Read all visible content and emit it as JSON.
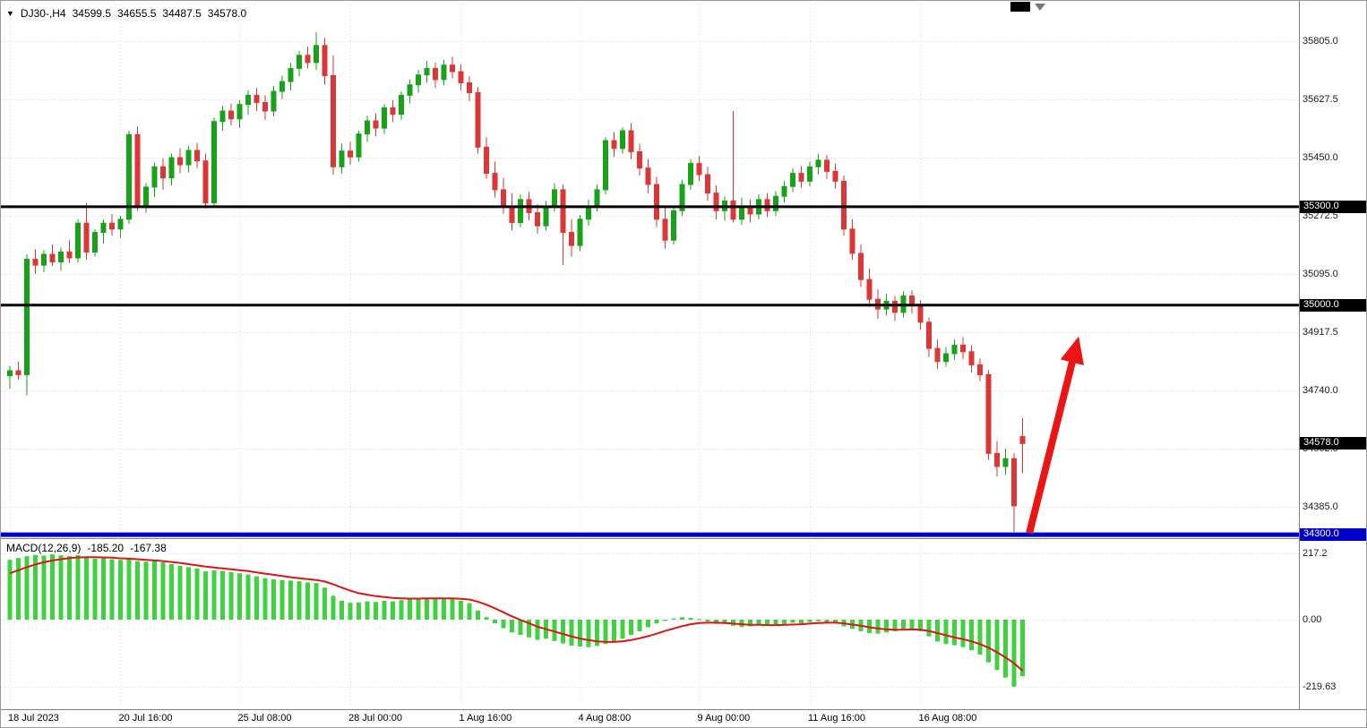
{
  "header": {
    "dropdown_icon": "▼",
    "symbol_period": "DJ30-,H4",
    "open": "34599.5",
    "high": "34655.5",
    "low": "34487.5",
    "close": "34578.0"
  },
  "indicator": {
    "label": "MACD(12,26,9)",
    "value_main": "-185.20",
    "value_signal": "-167.38"
  },
  "chart_data": {
    "type": "candlestick+macd",
    "symbol": "DJ30-",
    "timeframe": "H4",
    "price_ticks": [
      "35805.0",
      "35627.5",
      "35450.0",
      "35272.5",
      "35095.0",
      "34917.5",
      "34740.0",
      "34562.5",
      "34385.0"
    ],
    "macd_ticks": [
      "217.2",
      "0.00",
      "-219.63"
    ],
    "time_ticks": [
      {
        "label": "18 Jul 2023",
        "index": 0
      },
      {
        "label": "20 Jul 16:00",
        "index": 13
      },
      {
        "label": "25 Jul 08:00",
        "index": 27
      },
      {
        "label": "28 Jul 00:00",
        "index": 40
      },
      {
        "label": "1 Aug 16:00",
        "index": 53
      },
      {
        "label": "4 Aug 08:00",
        "index": 67
      },
      {
        "label": "9 Aug 00:00",
        "index": 81
      },
      {
        "label": "11 Aug 16:00",
        "index": 94
      },
      {
        "label": "16 Aug 08:00",
        "index": 107
      }
    ],
    "levels": [
      {
        "value": 35300.0,
        "label": "35300.0",
        "color": "#000000",
        "width": 3,
        "name": "resistance-line-35300"
      },
      {
        "value": 35000.0,
        "label": "35000.0",
        "color": "#000000",
        "width": 3,
        "name": "support-line-35000"
      },
      {
        "value": 34300.0,
        "label": "34300.0",
        "color": "#0000cd",
        "width": 5,
        "name": "support-line-34300"
      }
    ],
    "current_price_tag": {
      "value": 34578.0,
      "label": "34578.0",
      "color": "#000000"
    },
    "colors": {
      "up": "#17a317",
      "down": "#dd3636",
      "macd_bar": "#3fd23f",
      "signal": "#e01414",
      "grid": "#d9d9d9",
      "arrow": "#ec1515"
    },
    "ylim_price": [
      34250,
      35930
    ],
    "ylim_macd": [
      -260,
      250
    ],
    "ohlc": [
      [
        34785,
        34815,
        34745,
        34800
      ],
      [
        34800,
        34828,
        34772,
        34788
      ],
      [
        34788,
        35155,
        34725,
        35140
      ],
      [
        35140,
        35170,
        35095,
        35122
      ],
      [
        35122,
        35168,
        35100,
        35155
      ],
      [
        35155,
        35185,
        35120,
        35132
      ],
      [
        35132,
        35176,
        35105,
        35162
      ],
      [
        35162,
        35198,
        35128,
        35144
      ],
      [
        35144,
        35262,
        35130,
        35250
      ],
      [
        35250,
        35312,
        35138,
        35162
      ],
      [
        35162,
        35232,
        35148,
        35222
      ],
      [
        35222,
        35262,
        35188,
        35250
      ],
      [
        35250,
        35278,
        35212,
        35232
      ],
      [
        35232,
        35272,
        35205,
        35262
      ],
      [
        35262,
        35532,
        35248,
        35520
      ],
      [
        35520,
        35545,
        35288,
        35302
      ],
      [
        35302,
        35372,
        35282,
        35360
      ],
      [
        35360,
        35435,
        35330,
        35422
      ],
      [
        35422,
        35448,
        35352,
        35388
      ],
      [
        35388,
        35462,
        35365,
        35450
      ],
      [
        35450,
        35478,
        35402,
        35428
      ],
      [
        35428,
        35485,
        35405,
        35472
      ],
      [
        35472,
        35495,
        35418,
        35440
      ],
      [
        35440,
        35462,
        35295,
        35312
      ],
      [
        35312,
        35572,
        35300,
        35560
      ],
      [
        35560,
        35608,
        35532,
        35592
      ],
      [
        35592,
        35615,
        35548,
        35568
      ],
      [
        35568,
        35625,
        35540,
        35612
      ],
      [
        35612,
        35655,
        35580,
        35640
      ],
      [
        35640,
        35662,
        35592,
        35618
      ],
      [
        35618,
        35640,
        35565,
        35592
      ],
      [
        35592,
        35668,
        35575,
        35652
      ],
      [
        35652,
        35700,
        35628,
        35682
      ],
      [
        35682,
        35738,
        35655,
        35722
      ],
      [
        35722,
        35775,
        35698,
        35762
      ],
      [
        35762,
        35788,
        35722,
        35740
      ],
      [
        35740,
        35832,
        35718,
        35792
      ],
      [
        35792,
        35815,
        35672,
        35700
      ],
      [
        35700,
        35762,
        35398,
        35422
      ],
      [
        35422,
        35492,
        35402,
        35470
      ],
      [
        35470,
        35498,
        35428,
        35452
      ],
      [
        35452,
        35532,
        35438,
        35522
      ],
      [
        35522,
        35578,
        35498,
        35562
      ],
      [
        35562,
        35585,
        35515,
        35540
      ],
      [
        35540,
        35612,
        35522,
        35602
      ],
      [
        35602,
        35625,
        35558,
        35582
      ],
      [
        35582,
        35652,
        35565,
        35640
      ],
      [
        35640,
        35688,
        35615,
        35672
      ],
      [
        35672,
        35718,
        35648,
        35702
      ],
      [
        35702,
        35745,
        35678,
        35722
      ],
      [
        35722,
        35740,
        35662,
        35688
      ],
      [
        35688,
        35748,
        35670,
        35732
      ],
      [
        35732,
        35758,
        35692,
        35712
      ],
      [
        35712,
        35735,
        35655,
        35678
      ],
      [
        35678,
        35698,
        35622,
        35648
      ],
      [
        35648,
        35665,
        35462,
        35482
      ],
      [
        35482,
        35512,
        35385,
        35402
      ],
      [
        35402,
        35438,
        35328,
        35352
      ],
      [
        35352,
        35388,
        35278,
        35302
      ],
      [
        35302,
        35342,
        35228,
        35252
      ],
      [
        35252,
        35338,
        35238,
        35322
      ],
      [
        35322,
        35345,
        35258,
        35282
      ],
      [
        35282,
        35308,
        35218,
        35242
      ],
      [
        35242,
        35318,
        35228,
        35302
      ],
      [
        35302,
        35372,
        35285,
        35352
      ],
      [
        35352,
        35368,
        35122,
        35222
      ],
      [
        35222,
        35262,
        35148,
        35182
      ],
      [
        35182,
        35275,
        35165,
        35262
      ],
      [
        35262,
        35322,
        35242,
        35302
      ],
      [
        35302,
        35368,
        35285,
        35352
      ],
      [
        35352,
        35512,
        35338,
        35502
      ],
      [
        35502,
        35528,
        35452,
        35478
      ],
      [
        35478,
        35542,
        35462,
        35532
      ],
      [
        35532,
        35555,
        35445,
        35468
      ],
      [
        35468,
        35492,
        35395,
        35418
      ],
      [
        35418,
        35445,
        35342,
        35368
      ],
      [
        35368,
        35392,
        35238,
        35262
      ],
      [
        35262,
        35298,
        35172,
        35198
      ],
      [
        35198,
        35302,
        35185,
        35288
      ],
      [
        35288,
        35382,
        35272,
        35368
      ],
      [
        35368,
        35445,
        35352,
        35432
      ],
      [
        35432,
        35455,
        35378,
        35398
      ],
      [
        35398,
        35422,
        35318,
        35342
      ],
      [
        35342,
        35365,
        35262,
        35288
      ],
      [
        35288,
        35332,
        35258,
        35318
      ],
      [
        35318,
        35592,
        35252,
        35262
      ],
      [
        35262,
        35328,
        35245,
        35302
      ],
      [
        35302,
        35322,
        35252,
        35278
      ],
      [
        35278,
        35338,
        35262,
        35322
      ],
      [
        35322,
        35342,
        35268,
        35288
      ],
      [
        35288,
        35348,
        35272,
        35332
      ],
      [
        35332,
        35378,
        35312,
        35362
      ],
      [
        35362,
        35418,
        35345,
        35402
      ],
      [
        35402,
        35425,
        35358,
        35378
      ],
      [
        35378,
        35438,
        35362,
        35422
      ],
      [
        35422,
        35462,
        35398,
        35442
      ],
      [
        35442,
        35458,
        35385,
        35408
      ],
      [
        35408,
        35432,
        35355,
        35378
      ],
      [
        35378,
        35395,
        35212,
        35232
      ],
      [
        35232,
        35262,
        35138,
        35158
      ],
      [
        35158,
        35185,
        35055,
        35078
      ],
      [
        35078,
        35112,
        34995,
        35018
      ],
      [
        35018,
        35048,
        34958,
        34988
      ],
      [
        34988,
        35035,
        34968,
        35012
      ],
      [
        35012,
        35028,
        34952,
        34978
      ],
      [
        34978,
        35042,
        34962,
        35028
      ],
      [
        35028,
        35045,
        34975,
        34998
      ],
      [
        34998,
        35015,
        34925,
        34948
      ],
      [
        34948,
        34962,
        34842,
        34868
      ],
      [
        34868,
        34895,
        34805,
        34828
      ],
      [
        34828,
        34872,
        34812,
        34852
      ],
      [
        34852,
        34895,
        34832,
        34878
      ],
      [
        34878,
        34902,
        34835,
        34858
      ],
      [
        34858,
        34878,
        34795,
        34818
      ],
      [
        34818,
        34838,
        34768,
        34788
      ],
      [
        34788,
        34802,
        34528,
        34548
      ],
      [
        34548,
        34585,
        34478,
        34508
      ],
      [
        34508,
        34562,
        34482,
        34532
      ],
      [
        34532,
        34548,
        34308,
        34388
      ],
      [
        34599.5,
        34655.5,
        34487.5,
        34578.0
      ]
    ],
    "macd_hist": [
      196,
      202,
      208,
      212,
      210,
      214,
      211,
      208,
      212,
      205,
      200,
      202,
      198,
      196,
      200,
      192,
      190,
      192,
      188,
      182,
      176,
      172,
      168,
      158,
      162,
      160,
      156,
      152,
      148,
      142,
      136,
      132,
      130,
      128,
      126,
      122,
      120,
      105,
      78,
      62,
      55,
      56,
      60,
      58,
      62,
      60,
      64,
      66,
      70,
      72,
      70,
      71,
      68,
      62,
      54,
      30,
      8,
      -12,
      -28,
      -42,
      -50,
      -58,
      -66,
      -62,
      -70,
      -78,
      -85,
      -88,
      -90,
      -86,
      -80,
      -72,
      -62,
      -50,
      -38,
      -25,
      -12,
      -4,
      4,
      8,
      6,
      2,
      -6,
      -14,
      -12,
      -20,
      -24,
      -22,
      -18,
      -20,
      -17,
      -14,
      -10,
      -12,
      -8,
      -5,
      -8,
      -12,
      -22,
      -30,
      -38,
      -44,
      -46,
      -42,
      -38,
      -33,
      -30,
      -38,
      -55,
      -72,
      -80,
      -84,
      -90,
      -100,
      -115,
      -140,
      -165,
      -190,
      -219.63,
      -185.2
    ],
    "macd_signal": [
      152,
      162,
      172,
      181,
      188,
      194,
      198,
      202,
      204,
      205,
      205,
      204,
      203,
      201,
      200,
      198,
      196,
      194,
      192,
      189,
      186,
      182,
      178,
      174,
      171,
      168,
      165,
      162,
      159,
      155,
      151,
      147,
      143,
      139,
      136,
      133,
      130,
      125,
      116,
      105,
      95,
      87,
      82,
      77,
      74,
      71,
      70,
      69,
      69,
      70,
      70,
      70,
      70,
      68,
      66,
      59,
      49,
      37,
      24,
      11,
      -1,
      -12,
      -23,
      -31,
      -39,
      -47,
      -55,
      -62,
      -67,
      -71,
      -73,
      -73,
      -71,
      -67,
      -61,
      -54,
      -46,
      -37,
      -29,
      -21,
      -15,
      -11,
      -10,
      -10,
      -11,
      -13,
      -15,
      -17,
      -17,
      -18,
      -18,
      -17,
      -16,
      -15,
      -13,
      -11,
      -10,
      -10,
      -12,
      -16,
      -20,
      -25,
      -29,
      -32,
      -33,
      -33,
      -32,
      -33,
      -37,
      -44,
      -51,
      -58,
      -64,
      -71,
      -80,
      -92,
      -107,
      -124,
      -143,
      -167.38
    ],
    "annotations": {
      "arrow": {
        "from_index": 119.8,
        "from_price": 34305,
        "to_index": 125.6,
        "to_price": 34905,
        "color": "#ec1515"
      }
    }
  }
}
